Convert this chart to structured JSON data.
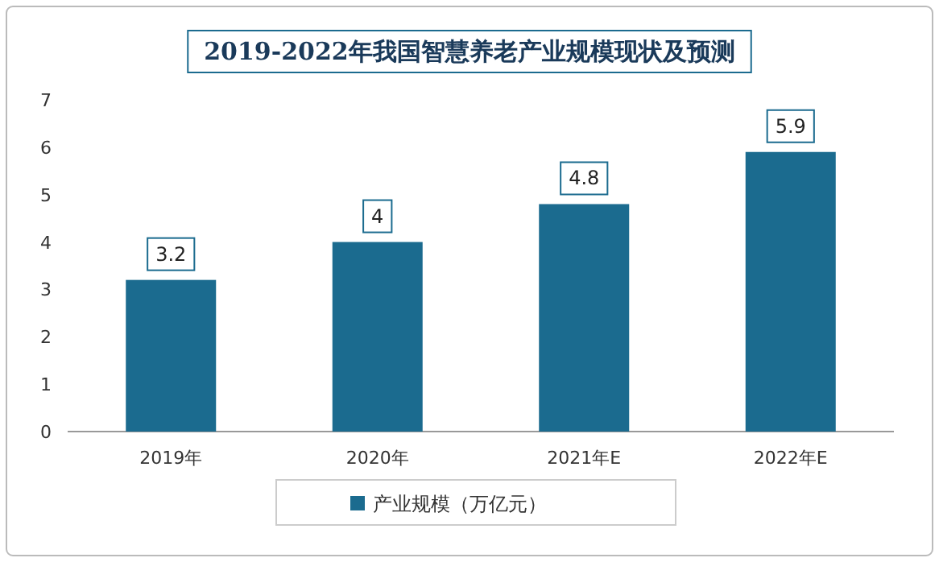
{
  "chart_data": {
    "type": "bar",
    "title": "2019-2022年我国智慧养老产业规模现状及预测",
    "categories": [
      "2019年",
      "2020年",
      "2021年E",
      "2022年E"
    ],
    "series": [
      {
        "name": "产业规模（万亿元）",
        "color": "#1b6b8f",
        "values": [
          3.2,
          4,
          4.8,
          5.9
        ]
      }
    ],
    "ylim": [
      0,
      7
    ],
    "yticks": [
      0,
      1,
      2,
      3,
      4,
      5,
      6,
      7
    ],
    "data_labels": true,
    "grid": false,
    "legend": "bottom"
  }
}
